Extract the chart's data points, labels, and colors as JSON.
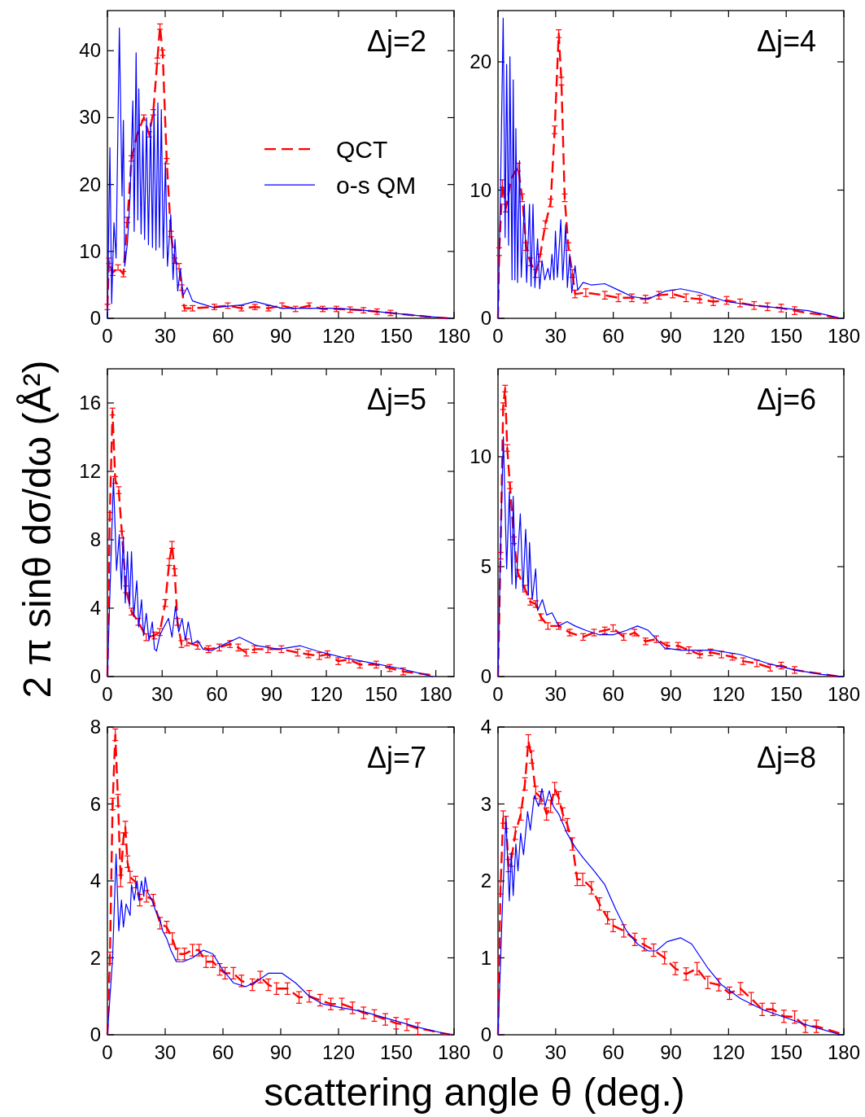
{
  "chart_data": [
    {
      "type": "line",
      "title": "Δj=2",
      "xlim": [
        0,
        180
      ],
      "ylim": [
        0,
        46
      ],
      "xticks": [
        0,
        30,
        60,
        90,
        120,
        150,
        180
      ],
      "yticks": [
        0,
        10,
        20,
        30,
        40
      ],
      "legend": "right",
      "series": [
        {
          "name": "QCT",
          "color": "#ff0000",
          "line_style": "dashed",
          "x": [
            0,
            0.8,
            2.7,
            5.5,
            8.3,
            10.4,
            12.5,
            15.4,
            18.9,
            21.7,
            23.8,
            25.9,
            27.3,
            28.7,
            30.8,
            33,
            35,
            37.2,
            38.6,
            40,
            44.2,
            55.5,
            62.5,
            69.6,
            76.6,
            83.6,
            90.7,
            97.7,
            104.8,
            111.8,
            118.9,
            126,
            133,
            140,
            147,
            154,
            161,
            168,
            177
          ],
          "values": [
            1.7,
            8.6,
            6.8,
            7.6,
            6.6,
            14.7,
            23.9,
            27.5,
            30,
            27.5,
            30.8,
            38.5,
            43.6,
            39.7,
            23.5,
            12.6,
            8.6,
            7.8,
            4.6,
            1.5,
            1.5,
            1.7,
            1.9,
            1.5,
            1.7,
            1.5,
            1.9,
            1.4,
            1.9,
            1.4,
            1.4,
            1.3,
            1.2,
            1.0,
            0.8,
            0.6,
            0.4,
            0.2,
            0.0
          ],
          "errors": [
            0.4,
            0.4,
            0.4,
            0.4,
            0.4,
            0.4,
            0.4,
            null,
            0.4,
            0.4,
            0.4,
            0.4,
            0.4,
            0.4,
            0.4,
            0.4,
            0.4,
            0.4,
            0.4,
            0.4,
            0.4,
            0.4,
            0.4,
            0.4,
            0.4,
            0.4,
            0.4,
            0.4,
            0.4,
            0.4,
            0.4,
            0.4,
            0.4,
            0.4,
            0.4,
            null,
            null,
            null,
            null
          ]
        },
        {
          "name": "o-s QM",
          "color": "#0000ff",
          "line_style": "solid",
          "x": [
            0,
            1.3,
            2.2,
            3.4,
            4.5,
            6.2,
            7.6,
            8.3,
            9,
            10.4,
            11.8,
            13.2,
            13.9,
            14.9,
            15.8,
            16.3,
            17.5,
            18.4,
            19.3,
            20.3,
            21.3,
            22.4,
            23.4,
            24.2,
            25.2,
            26.2,
            27,
            28,
            29,
            30.1,
            31.2,
            32.9,
            34.1,
            35.1,
            36.5,
            37.9,
            39.3,
            41.4,
            44.2,
            48.4,
            55.5,
            62.5,
            69.6,
            76.6,
            83.6,
            90.7,
            104.8,
            118.9,
            133,
            147,
            161,
            178
          ],
          "values": [
            0,
            25.5,
            2.2,
            14.3,
            9,
            43.4,
            18.3,
            29.6,
            7.8,
            11.3,
            18.4,
            32.5,
            13,
            39.7,
            14.7,
            34.3,
            12.6,
            28,
            11.8,
            30,
            11,
            29.2,
            10.6,
            31.2,
            10.2,
            32.2,
            10.6,
            31.2,
            9,
            23.4,
            7.8,
            15.5,
            5.8,
            11.8,
            4.1,
            7.4,
            3.4,
            4.6,
            2.6,
            2.2,
            1.6,
            1.8,
            2,
            2.5,
            2,
            1.5,
            1.5,
            1.5,
            1.2,
            0.8,
            0.4,
            0
          ]
        }
      ]
    },
    {
      "type": "line",
      "title": "Δj=4",
      "xlim": [
        0,
        180
      ],
      "ylim": [
        0,
        24
      ],
      "xticks": [
        0,
        30,
        60,
        90,
        120,
        150,
        180
      ],
      "yticks": [
        0,
        10,
        20
      ],
      "series": [
        {
          "color": "#ff0000",
          "line_style": "dashed",
          "x": [
            0,
            0.6,
            2.3,
            4.1,
            6.9,
            10.4,
            12.6,
            14.7,
            16.8,
            19.6,
            21.7,
            24.6,
            27.4,
            29.5,
            31.6,
            33,
            34.7,
            36.6,
            38.7,
            40.1,
            45.7,
            55.6,
            62.7,
            69.7,
            76.8,
            83.8,
            90.9,
            97.9,
            105,
            112,
            119,
            126,
            133.3,
            140.3,
            147.4,
            154.4,
            161.6,
            168.6,
            177
          ],
          "values": [
            0,
            5.2,
            10.5,
            8.6,
            10.9,
            11.8,
            9.4,
            5.6,
            4.4,
            3.5,
            4.7,
            7.3,
            9.0,
            14.7,
            22.2,
            18.5,
            9.4,
            5.6,
            3.5,
            1.9,
            2.0,
            1.8,
            1.6,
            1.6,
            1.5,
            1.8,
            1.9,
            1.6,
            1.5,
            1.3,
            1.4,
            1.2,
            1.0,
            0.9,
            0.8,
            0.6,
            0.4,
            0.3,
            0.0
          ],
          "errors": [
            null,
            0.3,
            0.3,
            0.3,
            null,
            0.3,
            0.3,
            0.3,
            0.3,
            0.3,
            0.3,
            0.3,
            0.3,
            0.3,
            0.3,
            0.3,
            0.3,
            0.3,
            0.3,
            0.3,
            0.3,
            0.3,
            0.3,
            0.3,
            0.3,
            0.3,
            0.3,
            0.3,
            0.3,
            0.3,
            0.3,
            0.3,
            0.3,
            0.3,
            0.3,
            0.3,
            null,
            null,
            null
          ]
        },
        {
          "color": "#0000ff",
          "line_style": "solid",
          "x": [
            0,
            1.3,
            2.7,
            3.7,
            4.5,
            5.5,
            6.2,
            7.3,
            7.9,
            8.8,
            9.3,
            10.2,
            11.2,
            12.1,
            13.7,
            14.9,
            16.4,
            17.2,
            18.2,
            19.2,
            20.6,
            21.7,
            22.9,
            24.3,
            26,
            27.1,
            28.1,
            29.1,
            29.9,
            30.9,
            32.7,
            33.7,
            35.2,
            36.1,
            37.3,
            38.4,
            40.1,
            41.5,
            44.3,
            48.5,
            55.6,
            62.7,
            69.7,
            78.2,
            86.7,
            95.1,
            105,
            119,
            133.3,
            147.4,
            161.6,
            178.4
          ],
          "values": [
            0,
            10,
            23.4,
            6.3,
            19.8,
            5.7,
            20.4,
            3,
            18.6,
            3,
            14.8,
            2.8,
            12.3,
            3.2,
            8.9,
            2.8,
            8.9,
            2.5,
            8.9,
            2.4,
            6.2,
            2.3,
            4.5,
            3,
            3.9,
            3,
            5,
            3,
            6.8,
            3.2,
            7.7,
            3,
            7.3,
            2.4,
            5,
            2,
            4.1,
            2.2,
            2.8,
            2.6,
            2.7,
            2.2,
            1.7,
            1.5,
            2.1,
            2.3,
            2,
            1.3,
            1,
            0.8,
            0.6,
            0
          ]
        }
      ]
    },
    {
      "type": "line",
      "title": "Δj=5",
      "ylabel": "2 π sinθ dσ/dω (Å²)",
      "xlim": [
        0,
        190
      ],
      "ylim": [
        0,
        18
      ],
      "xticks": [
        0,
        30,
        60,
        90,
        120,
        150,
        180
      ],
      "yticks": [
        0,
        4,
        8,
        12,
        16
      ],
      "series": [
        {
          "color": "#ff0000",
          "line_style": "dashed",
          "x": [
            0,
            1.3,
            2.8,
            4.3,
            6.2,
            8,
            10.2,
            13.2,
            16.9,
            21.3,
            25.8,
            28.7,
            31.7,
            33.9,
            35.4,
            36.9,
            38.4,
            40.6,
            43.6,
            49.5,
            55.4,
            61.3,
            67.2,
            71.7,
            76.1,
            80.6,
            88,
            95.4,
            104.3,
            110.2,
            116.1,
            120.6,
            126.5,
            132.4,
            138.4,
            147.3,
            154.7,
            162.1,
            169.5,
            176.9
          ],
          "values": [
            0,
            9.4,
            15.5,
            11.5,
            10.9,
            8.3,
            5.1,
            3.8,
            3.2,
            2.3,
            2.4,
            2.6,
            4.3,
            6.7,
            7.7,
            6.1,
            3.2,
            1.9,
            2.0,
            1.8,
            1.6,
            1.7,
            1.9,
            1.7,
            1.4,
            1.6,
            1.6,
            1.6,
            1.4,
            1.3,
            1.2,
            1.3,
            0.9,
            1.0,
            0.7,
            0.7,
            0.5,
            0.3,
            0.2,
            0.1
          ],
          "errors": [
            null,
            0.2,
            0.2,
            0.2,
            0.2,
            0.2,
            0.2,
            0.2,
            0.2,
            0.2,
            0.2,
            0.2,
            0.2,
            0.2,
            0.2,
            0.2,
            0.2,
            0.2,
            0.2,
            0.2,
            0.2,
            0.2,
            0.2,
            0.2,
            0.2,
            0.2,
            0.2,
            0.2,
            0.2,
            0.2,
            0.2,
            0.2,
            0.2,
            0.2,
            0.2,
            0.2,
            0.2,
            0.2,
            null,
            null
          ]
        },
        {
          "color": "#0000ff",
          "line_style": "solid",
          "x": [
            0,
            3.3,
            5,
            6.5,
            7.7,
            8.7,
            9.8,
            11,
            12.1,
            13.2,
            14.4,
            16.1,
            17.2,
            18.7,
            19.8,
            21.3,
            22.8,
            24.6,
            25.8,
            26.9,
            28.7,
            31,
            33.5,
            35.4,
            37.3,
            39.1,
            40.9,
            42.8,
            44.3,
            46.5,
            49.5,
            52.4,
            56.9,
            64.3,
            72.4,
            82,
            94,
            105.8,
            114.7,
            129.5,
            144.3,
            159.1,
            178.4
          ],
          "values": [
            0,
            11.6,
            6.2,
            8.3,
            5.1,
            8.2,
            4.3,
            7.3,
            4.1,
            7.3,
            3.5,
            5.6,
            2.9,
            4.5,
            2.4,
            3.7,
            2.1,
            3.2,
            1.6,
            1.5,
            2.4,
            2.9,
            3.4,
            2.3,
            4.1,
            2.6,
            3.4,
            2.1,
            3.2,
            1.9,
            2.1,
            1.6,
            1.5,
            1.9,
            2.3,
            1.8,
            1.6,
            1.8,
            1.5,
            1.1,
            0.8,
            0.5,
            0
          ]
        }
      ]
    },
    {
      "type": "line",
      "title": "Δj=6",
      "xlim": [
        0,
        180
      ],
      "ylim": [
        0,
        14
      ],
      "xticks": [
        0,
        30,
        60,
        90,
        120,
        150,
        180
      ],
      "yticks": [
        0,
        5,
        10
      ],
      "series": [
        {
          "color": "#ff0000",
          "line_style": "dashed",
          "x": [
            0,
            1.3,
            2.7,
            3.7,
            4.8,
            6.2,
            8.3,
            10.4,
            14,
            16.8,
            19.6,
            22.4,
            26,
            31.6,
            37.3,
            44.3,
            50,
            55.6,
            59.9,
            65.5,
            71.1,
            76.8,
            82.4,
            88,
            93.7,
            99.4,
            105,
            110.6,
            116.3,
            122,
            127.6,
            134.7,
            141.7,
            147.4,
            154.4,
            161.6,
            170,
            177
          ],
          "values": [
            0,
            5.5,
            12.3,
            13.1,
            10.4,
            8.7,
            6.2,
            4.7,
            4.0,
            3.4,
            3.3,
            2.7,
            2.3,
            2.3,
            2.0,
            1.8,
            2.0,
            2.1,
            2.2,
            1.8,
            2.0,
            1.6,
            1.7,
            1.4,
            1.4,
            1.2,
            1.0,
            1.1,
            1.0,
            0.9,
            0.7,
            0.6,
            0.4,
            0.5,
            0.3,
            0.2,
            0.1,
            0.0
          ],
          "errors": [
            null,
            0.15,
            0.15,
            0.15,
            0.15,
            0.15,
            0.15,
            0.15,
            0.15,
            0.15,
            0.15,
            0.15,
            0.15,
            0.15,
            0.15,
            0.15,
            0.15,
            0.15,
            0.15,
            0.15,
            0.15,
            0.15,
            0.15,
            0.15,
            0.15,
            0.15,
            0.15,
            0.15,
            0.15,
            0.15,
            0.15,
            0.15,
            0.15,
            0.15,
            0.15,
            null,
            null,
            null
          ]
        },
        {
          "color": "#0000ff",
          "line_style": "solid",
          "x": [
            0,
            1.5,
            2.8,
            4.5,
            5.9,
            7.3,
            7.9,
            9.3,
            11.6,
            13,
            14.4,
            15.8,
            16.4,
            17.8,
            19.6,
            20.6,
            23.1,
            25.3,
            28.1,
            31.6,
            35.9,
            40.1,
            45.7,
            52.8,
            59.9,
            66.9,
            72.6,
            78.2,
            86.7,
            95.1,
            112.1,
            126.2,
            140.3,
            154.4,
            168.7,
            178.4
          ],
          "values": [
            0,
            6.7,
            10.9,
            4.9,
            8.4,
            4.2,
            8.2,
            4,
            7.4,
            3.9,
            6.7,
            3.7,
            6.1,
            3.5,
            4.9,
            3,
            3.5,
            2.8,
            2.9,
            2.3,
            2.5,
            2.3,
            2.1,
            1.9,
            1.9,
            2.1,
            2.3,
            2.1,
            1.3,
            1.2,
            1.2,
            1,
            0.6,
            0.3,
            0.1,
            0
          ]
        }
      ]
    },
    {
      "type": "line",
      "title": "Δj=7",
      "xlabel": "scattering angle θ (deg.)",
      "xlim": [
        0,
        180
      ],
      "ylim": [
        0,
        8
      ],
      "xticks": [
        0,
        30,
        60,
        90,
        120,
        150,
        180
      ],
      "yticks": [
        0,
        2,
        4,
        6,
        8
      ],
      "series": [
        {
          "color": "#ff0000",
          "line_style": "dashed",
          "x": [
            0,
            1.3,
            2.7,
            4.1,
            5.5,
            6.9,
            8.3,
            9.3,
            10.4,
            11.8,
            14.6,
            16.8,
            20.3,
            23.8,
            27.3,
            30.8,
            33.7,
            36.5,
            40,
            44.2,
            47.6,
            51.2,
            54.8,
            58.3,
            61.1,
            65.4,
            69.6,
            75.3,
            79.4,
            83.6,
            87.8,
            93.5,
            99.5,
            104.8,
            110.4,
            116,
            121.7,
            127.3,
            133,
            138.6,
            144.3,
            149.9,
            155.5,
            161.2,
            166.8,
            172.4,
            178.7
          ],
          "values": [
            0,
            2.0,
            6.0,
            7.8,
            6.1,
            4.0,
            5.1,
            5.4,
            4.5,
            4.1,
            3.97,
            3.5,
            3.6,
            3.5,
            2.9,
            2.8,
            2.5,
            2.1,
            2.1,
            2.2,
            2.2,
            1.9,
            1.9,
            1.7,
            1.6,
            1.6,
            1.4,
            1.3,
            1.5,
            1.3,
            1.2,
            1.2,
            0.97,
            1.0,
            0.9,
            0.8,
            0.8,
            0.7,
            0.57,
            0.5,
            0.4,
            0.3,
            0.26,
            0.16,
            0.12,
            0.05,
            0.0
          ],
          "errors": [
            null,
            0.15,
            0.15,
            0.15,
            0.15,
            0.15,
            0.15,
            0.15,
            0.15,
            0.15,
            0.15,
            0.15,
            0.15,
            0.15,
            0.15,
            0.15,
            0.15,
            0.15,
            0.15,
            0.15,
            0.15,
            0.15,
            0.15,
            0.15,
            0.15,
            0.15,
            0.15,
            0.15,
            0.15,
            0.15,
            0.15,
            0.15,
            0.15,
            0.15,
            0.15,
            0.15,
            0.15,
            0.15,
            0.15,
            0.15,
            0.15,
            0.15,
            0.15,
            0.15,
            null,
            null,
            null
          ]
        },
        {
          "color": "#0000ff",
          "line_style": "solid",
          "x": [
            0,
            2.7,
            4.5,
            5.9,
            7.3,
            8.3,
            9.7,
            11.8,
            12.5,
            13.9,
            15.4,
            16.3,
            17.7,
            18.9,
            19.6,
            21,
            23.1,
            25.2,
            27.3,
            28.7,
            30.8,
            32.9,
            35.8,
            39.3,
            44.2,
            49.8,
            54.8,
            59.7,
            65.4,
            71.7,
            78,
            83.6,
            90.7,
            97.7,
            104.8,
            111.8,
            121.7,
            133,
            147,
            161,
            178
          ],
          "values": [
            0,
            2,
            4.7,
            2.7,
            3.5,
            2.8,
            3.4,
            3.1,
            3.9,
            3.5,
            4,
            3.5,
            4,
            3.6,
            4.1,
            3.7,
            3.5,
            3.2,
            3,
            2.7,
            2.5,
            2.2,
            1.9,
            1.9,
            2,
            2.2,
            2.1,
            1.7,
            1.35,
            1.25,
            1.4,
            1.6,
            1.6,
            1.35,
            1,
            0.8,
            0.7,
            0.6,
            0.4,
            0.2,
            0
          ]
        }
      ]
    },
    {
      "type": "line",
      "title": "Δj=8",
      "xlim": [
        0,
        180
      ],
      "ylim": [
        0,
        4
      ],
      "xticks": [
        0,
        30,
        60,
        90,
        120,
        150,
        180
      ],
      "yticks": [
        0,
        1,
        2,
        3,
        4
      ],
      "series": [
        {
          "color": "#ff0000",
          "line_style": "dashed",
          "x": [
            0,
            1.3,
            2.7,
            4.1,
            5.5,
            6.9,
            9,
            11.9,
            14,
            15.8,
            17.5,
            19.6,
            22.4,
            25.3,
            27.4,
            29.5,
            31.6,
            33.7,
            36.1,
            38.7,
            41.2,
            44.1,
            48.6,
            52.8,
            57,
            59.9,
            65.5,
            71.2,
            76.1,
            81,
            86.7,
            92.3,
            97.9,
            103.6,
            109.2,
            114.9,
            120.5,
            126.2,
            131.8,
            137.5,
            143.1,
            148.8,
            154.4,
            160,
            165.7,
            171.3,
            177.7
          ],
          "values": [
            0,
            1.91,
            2.83,
            2.76,
            2.2,
            2.27,
            2.62,
            2.87,
            3.26,
            3.82,
            3.61,
            3.15,
            3.08,
            2.87,
            2.97,
            3.2,
            3.08,
            2.87,
            2.73,
            2.48,
            2.02,
            2.02,
            1.91,
            1.7,
            1.52,
            1.42,
            1.35,
            1.24,
            1.17,
            1.1,
            1.0,
            0.86,
            0.79,
            0.86,
            0.68,
            0.65,
            0.54,
            0.6,
            0.47,
            0.33,
            0.33,
            0.24,
            0.23,
            0.11,
            0.11,
            0.07,
            0.02
          ],
          "errors": [
            null,
            0.08,
            0.08,
            0.08,
            0.08,
            0.08,
            0.08,
            0.08,
            0.08,
            0.08,
            0.08,
            0.08,
            0.08,
            0.08,
            0.08,
            0.08,
            0.08,
            0.08,
            0.08,
            0.08,
            0.08,
            0.08,
            0.08,
            0.08,
            0.08,
            0.08,
            0.08,
            0.08,
            0.08,
            0.08,
            0.08,
            0.08,
            0.08,
            0.08,
            0.08,
            0.08,
            0.08,
            0.08,
            0.08,
            0.08,
            0.08,
            0.08,
            0.08,
            0.08,
            0.08,
            null,
            null
          ]
        },
        {
          "color": "#0000ff",
          "line_style": "solid",
          "x": [
            0,
            2.3,
            4.1,
            5.9,
            6.9,
            7.9,
            9.3,
            10.4,
            11.8,
            13.3,
            15.4,
            16.8,
            18.9,
            21.1,
            22.9,
            24.5,
            26.7,
            28.8,
            31.6,
            35.9,
            40.1,
            44.3,
            50,
            55.6,
            61.3,
            66.9,
            72.6,
            78.2,
            82.4,
            88,
            95.1,
            100.8,
            109.4,
            116.3,
            126.2,
            137.5,
            148.8,
            161.6,
            178.4
          ],
          "values": [
            0,
            1.67,
            2.83,
            1.74,
            2.37,
            1.81,
            2.48,
            2.13,
            2.62,
            2.34,
            2.9,
            2.66,
            3.11,
            2.97,
            3.2,
            2.97,
            3.17,
            2.97,
            2.87,
            2.62,
            2.44,
            2.3,
            2.13,
            1.95,
            1.63,
            1.35,
            1.18,
            1.09,
            1.09,
            1.21,
            1.26,
            1.18,
            0.86,
            0.65,
            0.47,
            0.33,
            0.23,
            0.12,
            0
          ]
        }
      ]
    }
  ]
}
